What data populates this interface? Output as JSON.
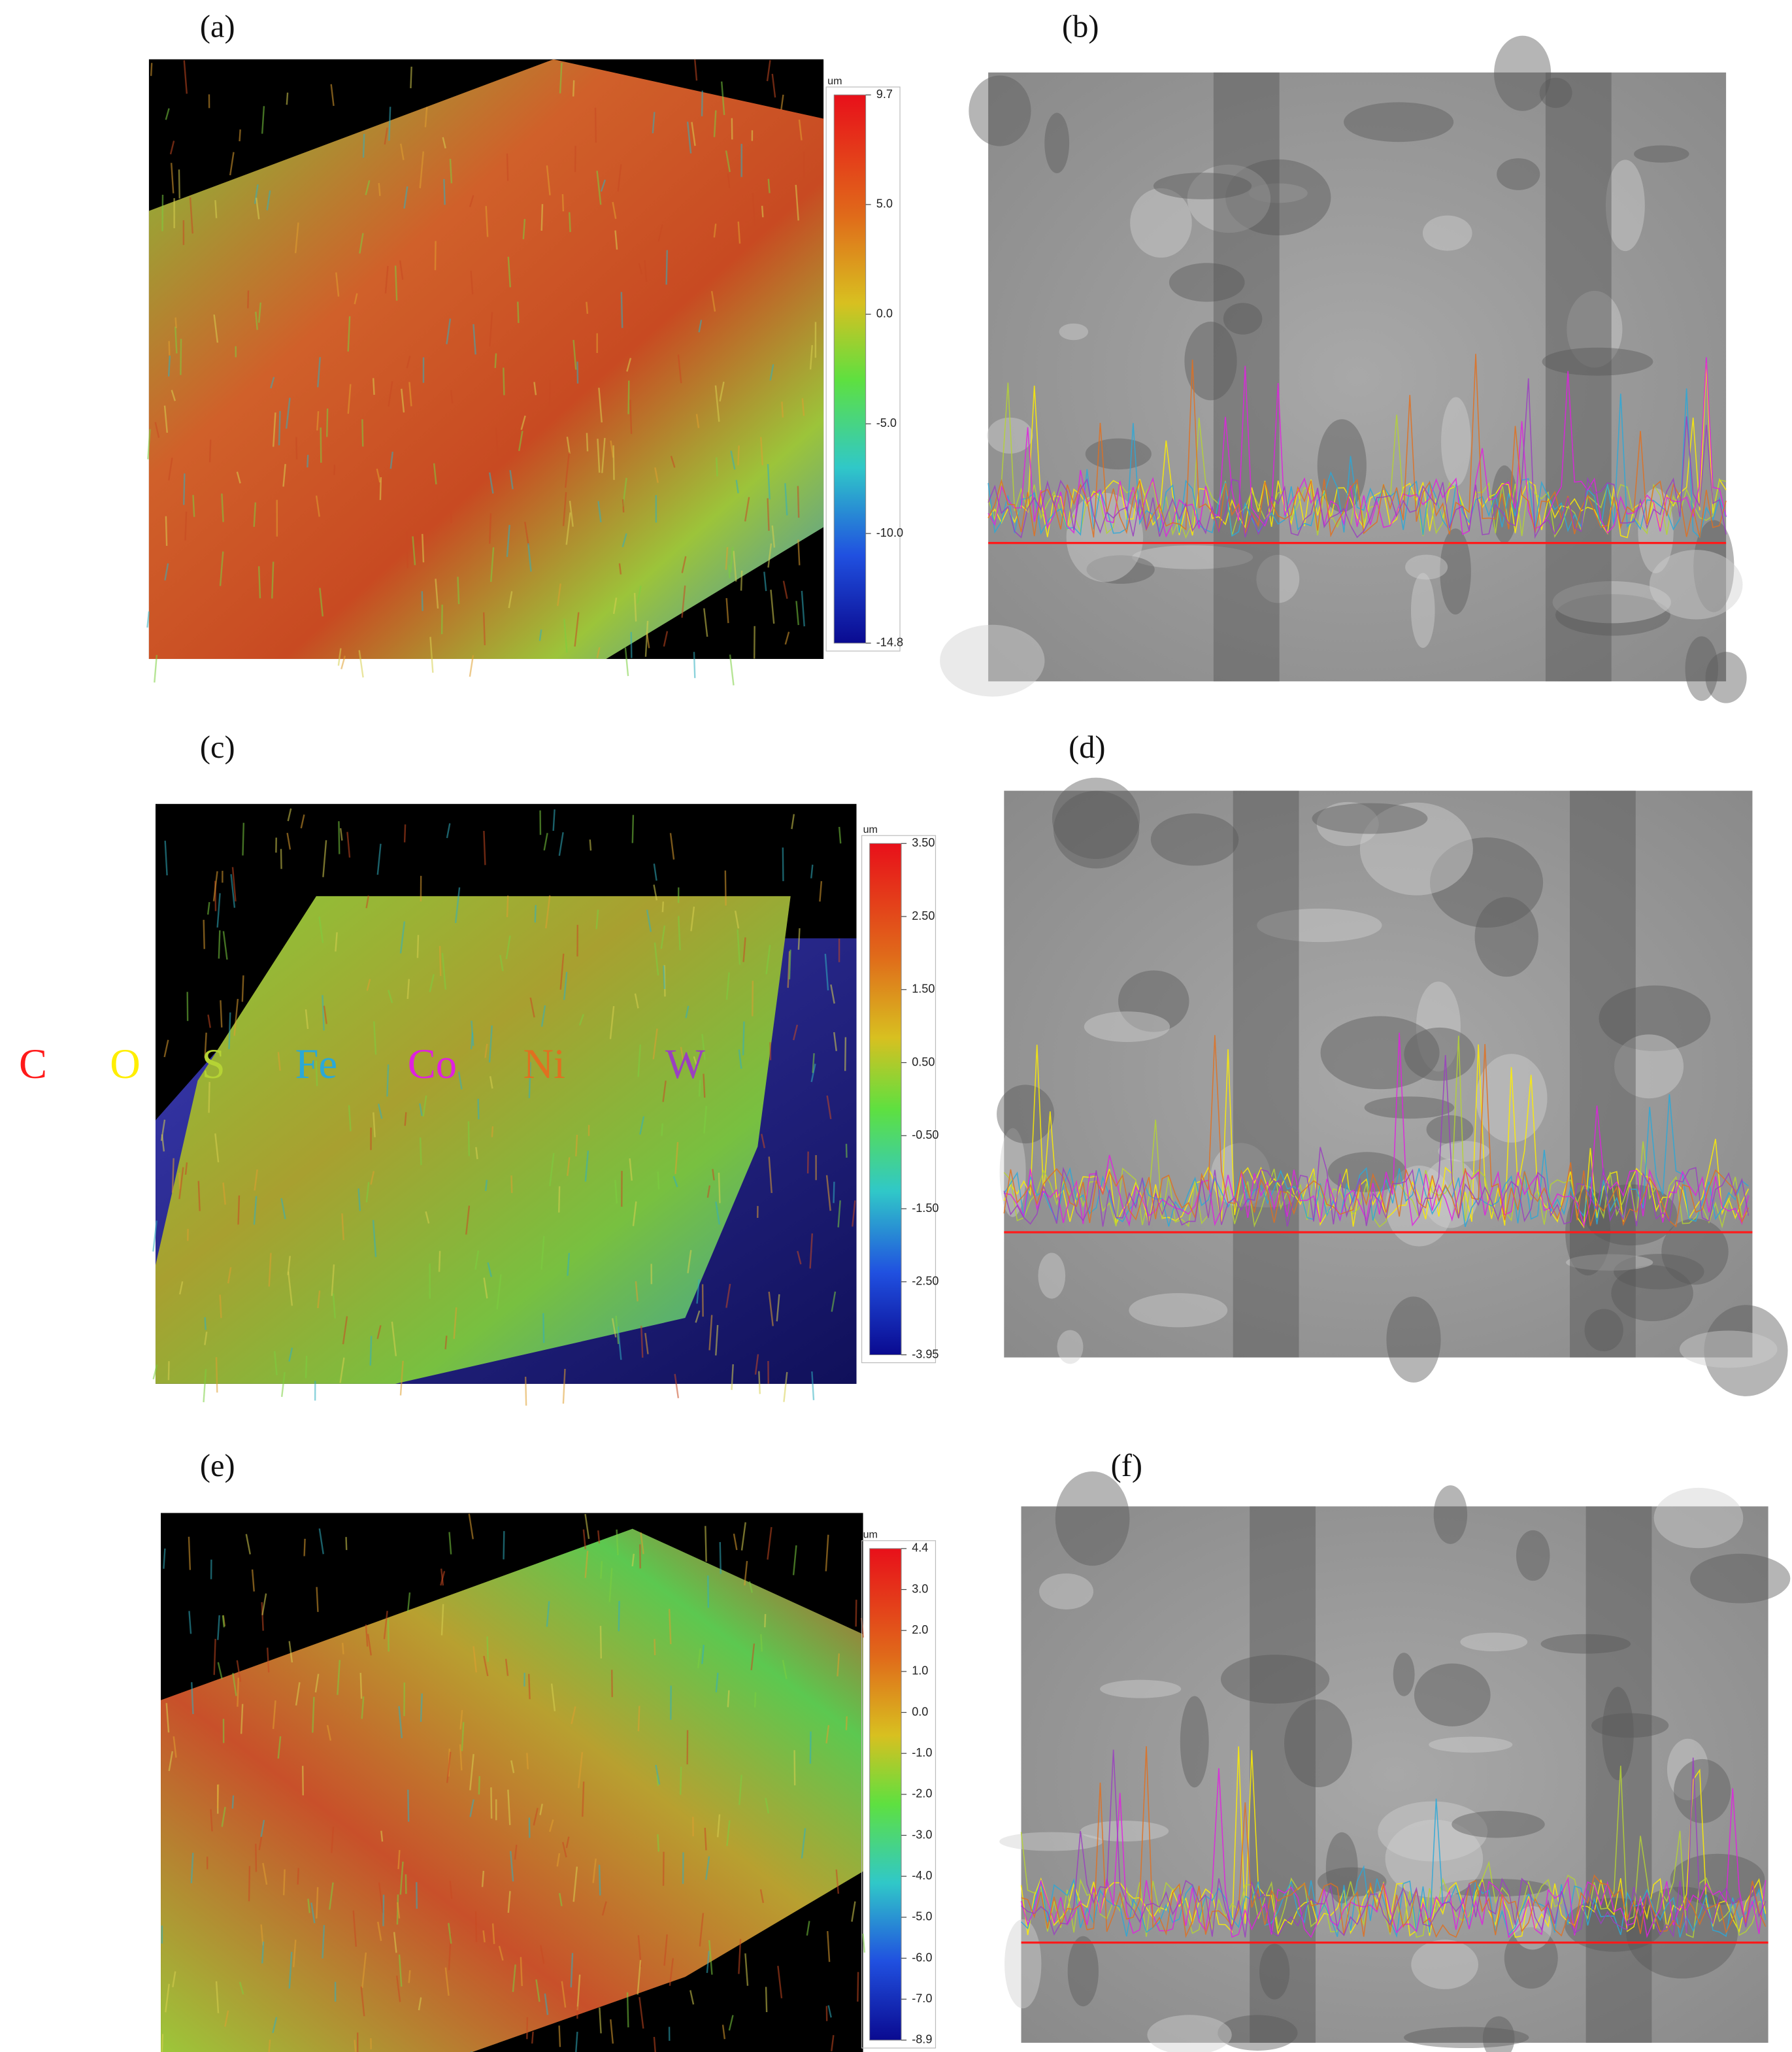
{
  "panels": [
    {
      "label": "(a)",
      "colorbar": {
        "unit": "um",
        "ticks": [
          "9.7",
          "5.0",
          "0.0",
          "-5.0",
          "-10.0",
          "-14.8"
        ]
      }
    },
    {
      "label": "(b)"
    },
    {
      "label": "(c)",
      "colorbar": {
        "unit": "um",
        "ticks": [
          "3.50",
          "2.50",
          "1.50",
          "0.50",
          "-0.50",
          "-1.50",
          "-2.50",
          "-3.95"
        ]
      }
    },
    {
      "label": "(d)"
    },
    {
      "label": "(e)",
      "colorbar": {
        "unit": "um",
        "ticks": [
          "4.4",
          "3.0",
          "2.0",
          "1.0",
          "0.0",
          "-1.0",
          "-2.0",
          "-3.0",
          "-4.0",
          "-5.0",
          "-6.0",
          "-7.0",
          "-8.9"
        ]
      }
    },
    {
      "label": "(f)"
    }
  ],
  "legend": [
    {
      "text": "C",
      "color": "#ff1a1a"
    },
    {
      "text": "O",
      "color": "#ffee00"
    },
    {
      "text": "S",
      "color": "#b5d334"
    },
    {
      "text": "Fe",
      "color": "#2aa8d8"
    },
    {
      "text": "Co",
      "color": "#e020e0"
    },
    {
      "text": "Ni",
      "color": "#e07020"
    },
    {
      "text": "W",
      "color": "#9a40c0"
    }
  ]
}
